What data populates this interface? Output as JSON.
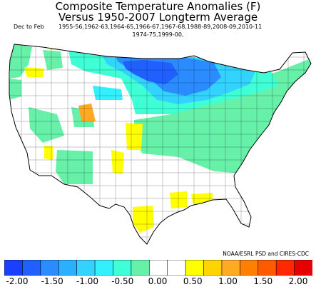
{
  "title": "Composite Temperature Anomalies (F)",
  "subtitle": "Versus 1950-2007 Longterm Average",
  "season": "Dec to Feb",
  "years_line1": "1955-56,1962-63,1964-65,1966-67,1967-68,1988-89,2008-09,2010-11",
  "years_line2": "1974-75,1999-00,",
  "credit": "NOAA/ESRL PSD and CIRES-CDC",
  "legend": {
    "colors": [
      "#1a40ff",
      "#2060ff",
      "#2b8cff",
      "#2bb0ff",
      "#33d3ff",
      "#33f0ff",
      "#3fffd6",
      "#66f0a8",
      "#ffffff",
      "#ffffff",
      "#ffff00",
      "#ffd400",
      "#ffaa22",
      "#ff8000",
      "#ff5a00",
      "#ff2800",
      "#e60000"
    ],
    "tick_labels": [
      "-2.00",
      "-1.50",
      "-1.00",
      "-0.50",
      "0.00",
      "0.50",
      "1.00",
      "1.50",
      "2.00"
    ]
  }
}
